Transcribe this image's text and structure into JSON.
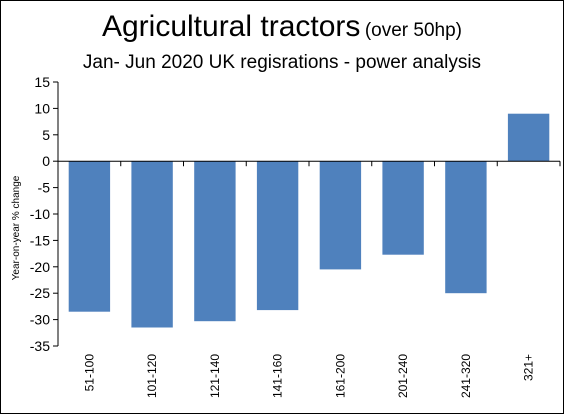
{
  "chart_data": {
    "type": "bar",
    "title": "Agricultural tractors",
    "title_suffix": "(over 50hp)",
    "subtitle": "Jan- Jun 2020 UK regisrations - power analysis",
    "xlabel": "",
    "ylabel": "Year-on-year  % change",
    "categories": [
      "51-100",
      "101-120",
      "121-140",
      "141-160",
      "161-200",
      "201-240",
      "241-320",
      "321+"
    ],
    "values": [
      -28.5,
      -31.5,
      -30.3,
      -28.2,
      -20.5,
      -17.7,
      -25.0,
      9.0
    ],
    "ylim": [
      -35,
      15
    ],
    "yticks": [
      "15",
      "10",
      "5",
      "0",
      "-5",
      "-10",
      "-15",
      "-20",
      "-25",
      "-30",
      "-35"
    ],
    "grid": false,
    "bar_color": "#4f81bd"
  }
}
